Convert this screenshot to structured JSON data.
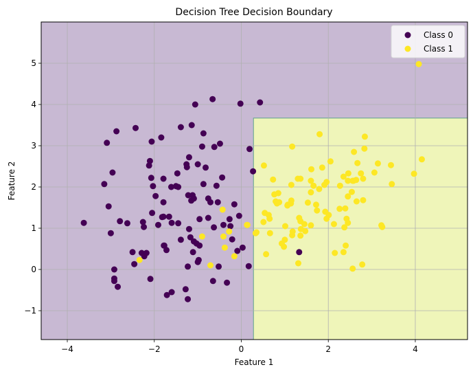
{
  "chart_data": {
    "type": "scatter",
    "title": "Decision Tree Decision Boundary",
    "xlabel": "Feature 1",
    "ylabel": "Feature 2",
    "xlim": [
      -4.6,
      5.2
    ],
    "ylim": [
      -1.7,
      6.0
    ],
    "xticks": [
      -4,
      -2,
      0,
      2,
      4
    ],
    "xtick_labels": [
      "−4",
      "−2",
      "0",
      "2",
      "4"
    ],
    "yticks": [
      -1,
      0,
      1,
      2,
      3,
      4,
      5
    ],
    "ytick_labels": [
      "−1",
      "0",
      "1",
      "2",
      "3",
      "4",
      "5"
    ],
    "grid": true,
    "legend_position": "upper right",
    "decision_regions": [
      {
        "class": 0,
        "color": "#c8b9d3",
        "description": "Everywhere except yellow rectangle"
      },
      {
        "class": 1,
        "color": "#eff5b9",
        "x_range": [
          0.28,
          5.2
        ],
        "y_range": [
          -1.7,
          3.67
        ]
      }
    ],
    "series": [
      {
        "name": "Class 0",
        "color": "#440154",
        "points": [
          [
            -3.62,
            1.13
          ],
          [
            -3.15,
            2.07
          ],
          [
            -3.09,
            3.07
          ],
          [
            -3.05,
            1.53
          ],
          [
            -3.0,
            0.88
          ],
          [
            -2.96,
            2.35
          ],
          [
            -2.92,
            0.0
          ],
          [
            -2.92,
            -0.22
          ],
          [
            -2.92,
            -0.28
          ],
          [
            -2.87,
            3.35
          ],
          [
            -2.84,
            -0.42
          ],
          [
            -2.79,
            1.17
          ],
          [
            -2.62,
            1.12
          ],
          [
            -2.46,
            0.13
          ],
          [
            -2.43,
            3.43
          ],
          [
            -2.5,
            0.42
          ],
          [
            -2.29,
            0.4
          ],
          [
            -2.26,
            1.15
          ],
          [
            -2.24,
            1.03
          ],
          [
            -2.23,
            0.32
          ],
          [
            -2.18,
            0.4
          ],
          [
            -2.12,
            2.52
          ],
          [
            -2.1,
            2.63
          ],
          [
            -2.09,
            -0.23
          ],
          [
            -2.07,
            2.22
          ],
          [
            -2.06,
            3.1
          ],
          [
            -2.05,
            1.37
          ],
          [
            -2.03,
            2.02
          ],
          [
            -1.97,
            1.78
          ],
          [
            -1.91,
            1.08
          ],
          [
            -1.84,
            3.2
          ],
          [
            -1.82,
            1.27
          ],
          [
            -1.79,
            2.2
          ],
          [
            -1.79,
            1.63
          ],
          [
            -1.79,
            1.28
          ],
          [
            -1.78,
            0.58
          ],
          [
            -1.77,
            0.58
          ],
          [
            -1.72,
            0.47
          ],
          [
            -1.71,
            -0.62
          ],
          [
            -1.66,
            1.28
          ],
          [
            -1.61,
            2.0
          ],
          [
            -1.6,
            1.13
          ],
          [
            -1.6,
            -0.55
          ],
          [
            -1.5,
            2.02
          ],
          [
            -1.47,
            2.33
          ],
          [
            -1.45,
            1.12
          ],
          [
            -1.45,
            2.0
          ],
          [
            -1.39,
            3.45
          ],
          [
            -1.39,
            0.72
          ],
          [
            -1.28,
            -0.48
          ],
          [
            -1.26,
            2.55
          ],
          [
            -1.25,
            2.48
          ],
          [
            -1.23,
            0.07
          ],
          [
            -1.23,
            -0.72
          ],
          [
            -1.22,
            1.8
          ],
          [
            -1.2,
            2.72
          ],
          [
            -1.2,
            0.98
          ],
          [
            -1.17,
            0.78
          ],
          [
            -1.15,
            1.67
          ],
          [
            -1.14,
            3.5
          ],
          [
            -1.12,
            1.8
          ],
          [
            -1.11,
            0.42
          ],
          [
            -1.09,
            1.72
          ],
          [
            -1.09,
            0.68
          ],
          [
            -1.06,
            4.0
          ],
          [
            -1.03,
            0.63
          ],
          [
            -1.0,
            2.55
          ],
          [
            -1.0,
            0.18
          ],
          [
            -0.98,
            0.23
          ],
          [
            -0.96,
            0.58
          ],
          [
            -0.96,
            1.22
          ],
          [
            -0.9,
            2.98
          ],
          [
            -0.87,
            3.3
          ],
          [
            -0.87,
            2.07
          ],
          [
            -0.82,
            2.47
          ],
          [
            -0.76,
            1.72
          ],
          [
            -0.76,
            1.25
          ],
          [
            -0.71,
            1.63
          ],
          [
            -0.66,
            4.13
          ],
          [
            -0.65,
            -0.28
          ],
          [
            -0.63,
            1.02
          ],
          [
            -0.62,
            2.97
          ],
          [
            -0.57,
            2.03
          ],
          [
            -0.54,
            1.63
          ],
          [
            -0.52,
            0.07
          ],
          [
            -0.49,
            3.05
          ],
          [
            -0.44,
            2.23
          ],
          [
            -0.41,
            1.08
          ],
          [
            -0.33,
            -0.32
          ],
          [
            -0.27,
            1.22
          ],
          [
            -0.25,
            1.05
          ],
          [
            -0.21,
            0.73
          ],
          [
            -0.16,
            1.58
          ],
          [
            -0.09,
            0.45
          ],
          [
            -0.05,
            1.3
          ],
          [
            -0.02,
            4.02
          ],
          [
            0.03,
            0.53
          ],
          [
            0.17,
            0.08
          ],
          [
            0.19,
            2.92
          ],
          [
            0.27,
            2.38
          ],
          [
            0.43,
            4.05
          ],
          [
            1.33,
            0.42
          ]
        ]
      },
      {
        "name": "Class 1",
        "color": "#fde725",
        "points": [
          [
            -2.34,
            0.23
          ],
          [
            -0.9,
            0.8
          ],
          [
            -0.71,
            0.1
          ],
          [
            -0.43,
            1.45
          ],
          [
            -0.41,
            0.8
          ],
          [
            -0.38,
            0.53
          ],
          [
            -0.28,
            0.92
          ],
          [
            -0.16,
            0.32
          ],
          [
            0.13,
            1.08
          ],
          [
            0.14,
            1.08
          ],
          [
            0.33,
            0.88
          ],
          [
            0.35,
            0.9
          ],
          [
            0.51,
            1.15
          ],
          [
            0.52,
            2.52
          ],
          [
            0.54,
            1.37
          ],
          [
            0.57,
            0.37
          ],
          [
            0.63,
            1.32
          ],
          [
            0.65,
            1.23
          ],
          [
            0.66,
            0.88
          ],
          [
            0.73,
            2.18
          ],
          [
            0.76,
            1.82
          ],
          [
            0.79,
            1.65
          ],
          [
            0.82,
            1.6
          ],
          [
            0.85,
            1.85
          ],
          [
            0.87,
            1.63
          ],
          [
            0.93,
            0.63
          ],
          [
            0.98,
            0.55
          ],
          [
            1.0,
            0.72
          ],
          [
            1.01,
            1.05
          ],
          [
            1.06,
            1.55
          ],
          [
            1.07,
            1.57
          ],
          [
            1.14,
            1.6
          ],
          [
            1.15,
            2.05
          ],
          [
            1.15,
            1.67
          ],
          [
            1.17,
            2.98
          ],
          [
            1.17,
            0.83
          ],
          [
            1.18,
            0.92
          ],
          [
            1.3,
            2.2
          ],
          [
            1.31,
            0.15
          ],
          [
            1.33,
            1.25
          ],
          [
            1.36,
            2.2
          ],
          [
            1.36,
            1.17
          ],
          [
            1.36,
            0.82
          ],
          [
            1.37,
            0.98
          ],
          [
            1.45,
            1.1
          ],
          [
            1.47,
            0.93
          ],
          [
            1.53,
            1.62
          ],
          [
            1.6,
            2.15
          ],
          [
            1.6,
            1.87
          ],
          [
            1.6,
            1.07
          ],
          [
            1.61,
            2.43
          ],
          [
            1.66,
            2.03
          ],
          [
            1.72,
            1.57
          ],
          [
            1.74,
            1.43
          ],
          [
            1.79,
            1.95
          ],
          [
            1.8,
            3.28
          ],
          [
            1.86,
            2.47
          ],
          [
            1.91,
            2.05
          ],
          [
            1.93,
            1.4
          ],
          [
            1.96,
            2.12
          ],
          [
            1.96,
            1.23
          ],
          [
            2.01,
            1.32
          ],
          [
            2.05,
            2.62
          ],
          [
            2.13,
            1.1
          ],
          [
            2.15,
            0.4
          ],
          [
            2.26,
            1.47
          ],
          [
            2.27,
            2.03
          ],
          [
            2.35,
            2.25
          ],
          [
            2.35,
            0.42
          ],
          [
            2.37,
            1.02
          ],
          [
            2.39,
            1.48
          ],
          [
            2.4,
            0.58
          ],
          [
            2.42,
            1.23
          ],
          [
            2.45,
            2.15
          ],
          [
            2.45,
            1.77
          ],
          [
            2.45,
            1.13
          ],
          [
            2.46,
            2.33
          ],
          [
            2.54,
            1.88
          ],
          [
            2.56,
            2.15
          ],
          [
            2.56,
            0.02
          ],
          [
            2.58,
            2.15
          ],
          [
            2.59,
            2.85
          ],
          [
            2.64,
            2.17
          ],
          [
            2.65,
            1.65
          ],
          [
            2.67,
            2.58
          ],
          [
            2.75,
            2.33
          ],
          [
            2.78,
            0.12
          ],
          [
            2.8,
            2.2
          ],
          [
            2.8,
            1.68
          ],
          [
            2.83,
            2.93
          ],
          [
            2.84,
            3.22
          ],
          [
            3.06,
            2.35
          ],
          [
            3.14,
            2.57
          ],
          [
            3.22,
            1.07
          ],
          [
            3.24,
            1.03
          ],
          [
            3.44,
            2.53
          ],
          [
            3.46,
            2.07
          ],
          [
            3.97,
            2.32
          ],
          [
            4.08,
            4.98
          ],
          [
            4.15,
            2.67
          ]
        ]
      }
    ]
  },
  "legend": {
    "items": [
      {
        "label": "Class 0",
        "color": "#440154"
      },
      {
        "label": "Class 1",
        "color": "#fde725"
      }
    ]
  }
}
